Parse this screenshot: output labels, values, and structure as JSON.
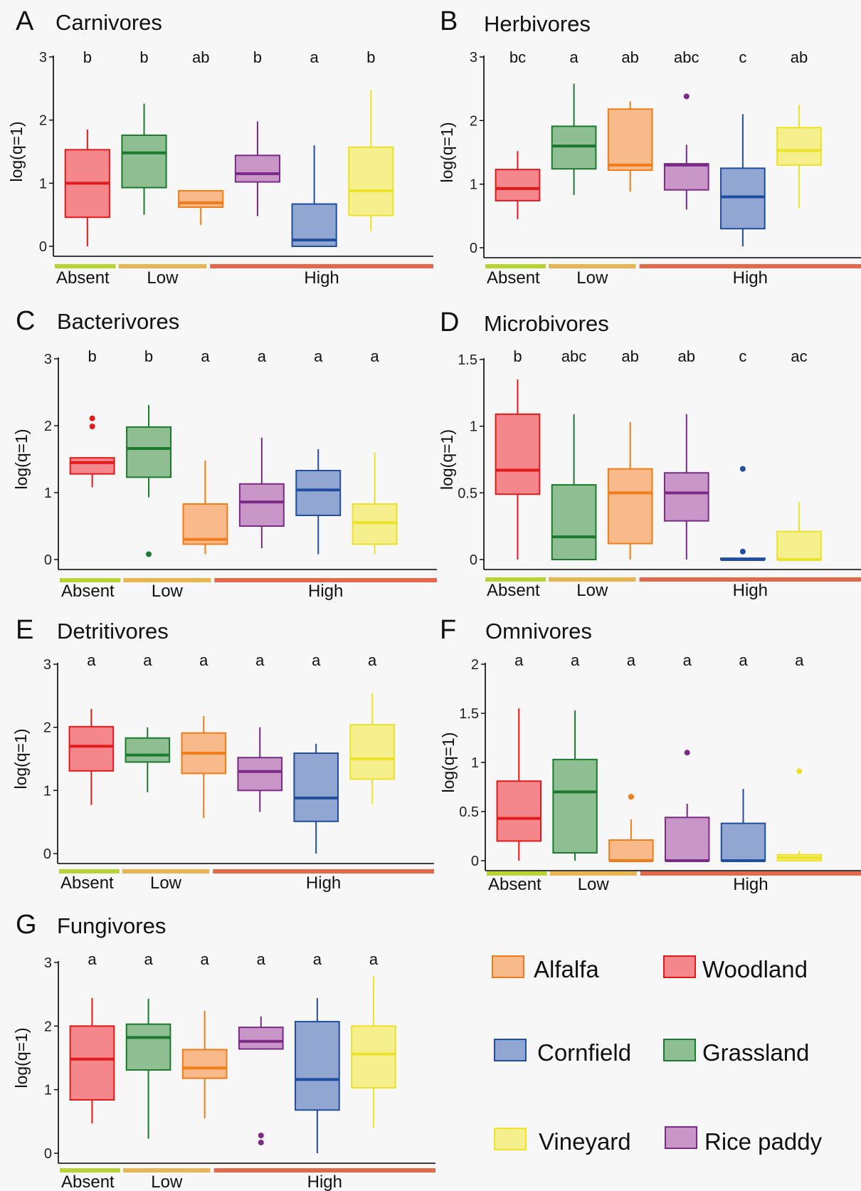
{
  "habitats": [
    {
      "name": "Woodland",
      "stroke": "#e31a1c",
      "fill": "#f4878b"
    },
    {
      "name": "Grassland",
      "stroke": "#1b7a2e",
      "fill": "#8fbe93"
    },
    {
      "name": "Alfalfa",
      "stroke": "#f07d18",
      "fill": "#f8b98b"
    },
    {
      "name": "Rice paddy",
      "stroke": "#7b2a87",
      "fill": "#c897c8"
    },
    {
      "name": "Cornfield",
      "stroke": "#1f4ea0",
      "fill": "#92a6d2"
    },
    {
      "name": "Vineyard",
      "stroke": "#ece22a",
      "fill": "#f5ef8e"
    }
  ],
  "groups": [
    {
      "label": "Absent",
      "color": "#b8d432"
    },
    {
      "label": "Low",
      "color": "#e8b650"
    },
    {
      "label": "High",
      "color": "#e2694b"
    }
  ],
  "legend": [
    {
      "label": "Alfalfa",
      "habitat": 2
    },
    {
      "label": "Woodland",
      "habitat": 0
    },
    {
      "label": "Cornfield",
      "habitat": 4
    },
    {
      "label": "Grassland",
      "habitat": 1
    },
    {
      "label": "Vineyard",
      "habitat": 5
    },
    {
      "label": "Rice paddy",
      "habitat": 3
    }
  ],
  "chart_data": [
    {
      "type": "box",
      "letter": "A",
      "title": "Carnivores",
      "ylabel": "log(q=1)",
      "ylim": [
        0,
        3
      ],
      "yticks": [
        "0",
        "1",
        "2",
        "3"
      ],
      "ytick_values": [
        0,
        1,
        2,
        3
      ],
      "sig": [
        "b",
        "b",
        "ab",
        "b",
        "a",
        "b"
      ],
      "boxes": [
        {
          "min": 0.0,
          "q1": 0.46,
          "median": 1.0,
          "q3": 1.53,
          "max": 1.85,
          "outliers": []
        },
        {
          "min": 0.5,
          "q1": 0.93,
          "median": 1.48,
          "q3": 1.76,
          "max": 2.26,
          "outliers": []
        },
        {
          "min": 0.34,
          "q1": 0.62,
          "median": 0.69,
          "q3": 0.88,
          "max": 0.88,
          "outliers": []
        },
        {
          "min": 0.48,
          "q1": 1.02,
          "median": 1.15,
          "q3": 1.44,
          "max": 1.98,
          "outliers": []
        },
        {
          "min": 0.0,
          "q1": 0.0,
          "median": 0.1,
          "q3": 0.67,
          "max": 1.6,
          "outliers": []
        },
        {
          "min": 0.24,
          "q1": 0.49,
          "median": 0.88,
          "q3": 1.57,
          "max": 2.48,
          "outliers": []
        }
      ]
    },
    {
      "type": "box",
      "letter": "B",
      "title": "Herbivores",
      "ylabel": "log(q=1)",
      "ylim": [
        0,
        3
      ],
      "yticks": [
        "0",
        "1",
        "2",
        "3"
      ],
      "ytick_values": [
        0,
        1,
        2,
        3
      ],
      "sig": [
        "bc",
        "a",
        "ab",
        "abc",
        "c",
        "ab"
      ],
      "boxes": [
        {
          "min": 0.45,
          "q1": 0.74,
          "median": 0.93,
          "q3": 1.23,
          "max": 1.52,
          "outliers": []
        },
        {
          "min": 0.83,
          "q1": 1.24,
          "median": 1.6,
          "q3": 1.91,
          "max": 2.58,
          "outliers": []
        },
        {
          "min": 0.88,
          "q1": 1.22,
          "median": 1.3,
          "q3": 2.18,
          "max": 2.3,
          "outliers": []
        },
        {
          "min": 0.6,
          "q1": 0.91,
          "median": 1.3,
          "q3": 1.32,
          "max": 1.62,
          "outliers": [
            2.38
          ]
        },
        {
          "min": 0.02,
          "q1": 0.3,
          "median": 0.8,
          "q3": 1.25,
          "max": 2.1,
          "outliers": []
        },
        {
          "min": 0.62,
          "q1": 1.3,
          "median": 1.53,
          "q3": 1.89,
          "max": 2.25,
          "outliers": []
        }
      ]
    },
    {
      "type": "box",
      "letter": "C",
      "title": "Bacterivores",
      "ylabel": "log(q=1)",
      "ylim": [
        0,
        3
      ],
      "yticks": [
        "0",
        "1",
        "2",
        "3"
      ],
      "ytick_values": [
        0,
        1,
        2,
        3
      ],
      "sig": [
        "b",
        "b",
        "a",
        "a",
        "a",
        "a"
      ],
      "boxes": [
        {
          "min": 1.08,
          "q1": 1.28,
          "median": 1.45,
          "q3": 1.52,
          "max": 1.52,
          "outliers": [
            1.99,
            2.11
          ]
        },
        {
          "min": 0.93,
          "q1": 1.23,
          "median": 1.66,
          "q3": 1.98,
          "max": 2.31,
          "outliers": [
            0.08
          ]
        },
        {
          "min": 0.08,
          "q1": 0.23,
          "median": 0.3,
          "q3": 0.83,
          "max": 1.48,
          "outliers": []
        },
        {
          "min": 0.17,
          "q1": 0.5,
          "median": 0.86,
          "q3": 1.13,
          "max": 1.82,
          "outliers": []
        },
        {
          "min": 0.08,
          "q1": 0.66,
          "median": 1.04,
          "q3": 1.33,
          "max": 1.65,
          "outliers": []
        },
        {
          "min": 0.08,
          "q1": 0.23,
          "median": 0.55,
          "q3": 0.83,
          "max": 1.6,
          "outliers": []
        }
      ]
    },
    {
      "type": "box",
      "letter": "D",
      "title": "Microbivores",
      "ylabel": "log(q=1)",
      "ylim": [
        0,
        1.5
      ],
      "yticks": [
        "0",
        "0.5",
        "1",
        "1.5"
      ],
      "ytick_values": [
        0,
        0.5,
        1,
        1.5
      ],
      "sig": [
        "b",
        "abc",
        "ab",
        "ab",
        "c",
        "ac"
      ],
      "boxes": [
        {
          "min": 0.0,
          "q1": 0.49,
          "median": 0.67,
          "q3": 1.09,
          "max": 1.35,
          "outliers": []
        },
        {
          "min": 0.0,
          "q1": 0.0,
          "median": 0.17,
          "q3": 0.56,
          "max": 1.09,
          "outliers": []
        },
        {
          "min": 0.0,
          "q1": 0.12,
          "median": 0.5,
          "q3": 0.68,
          "max": 1.03,
          "outliers": []
        },
        {
          "min": 0.0,
          "q1": 0.29,
          "median": 0.5,
          "q3": 0.65,
          "max": 1.09,
          "outliers": []
        },
        {
          "min": 0.0,
          "q1": 0.0,
          "median": 0.0,
          "q3": 0.01,
          "max": 0.01,
          "outliers": [
            0.06,
            0.68
          ]
        },
        {
          "min": 0.0,
          "q1": 0.0,
          "median": 0.0,
          "q3": 0.21,
          "max": 0.43,
          "outliers": []
        }
      ]
    },
    {
      "type": "box",
      "letter": "E",
      "title": "Detritivores",
      "ylabel": "log(q=1)",
      "ylim": [
        0,
        3
      ],
      "yticks": [
        "0",
        "1",
        "2",
        "3"
      ],
      "ytick_values": [
        0,
        1,
        2,
        3
      ],
      "sig": [
        "a",
        "a",
        "a",
        "a",
        "a",
        "a"
      ],
      "boxes": [
        {
          "min": 0.77,
          "q1": 1.31,
          "median": 1.7,
          "q3": 2.01,
          "max": 2.29,
          "outliers": []
        },
        {
          "min": 0.97,
          "q1": 1.45,
          "median": 1.56,
          "q3": 1.83,
          "max": 2.0,
          "outliers": []
        },
        {
          "min": 0.56,
          "q1": 1.27,
          "median": 1.59,
          "q3": 1.91,
          "max": 2.18,
          "outliers": []
        },
        {
          "min": 0.66,
          "q1": 1.0,
          "median": 1.3,
          "q3": 1.52,
          "max": 2.0,
          "outliers": []
        },
        {
          "min": 0.0,
          "q1": 0.51,
          "median": 0.88,
          "q3": 1.59,
          "max": 1.74,
          "outliers": []
        },
        {
          "min": 0.78,
          "q1": 1.18,
          "median": 1.5,
          "q3": 2.04,
          "max": 2.54,
          "outliers": []
        }
      ]
    },
    {
      "type": "box",
      "letter": "F",
      "title": "Omnivores",
      "ylabel": "log(q=1)",
      "ylim": [
        0,
        2
      ],
      "yticks": [
        "0",
        "0.5",
        "1",
        "1.5",
        "2"
      ],
      "ytick_values": [
        0,
        0.5,
        1,
        1.5,
        2
      ],
      "sig": [
        "a",
        "a",
        "a",
        "a",
        "a",
        "a"
      ],
      "boxes": [
        {
          "min": 0.0,
          "q1": 0.2,
          "median": 0.43,
          "q3": 0.81,
          "max": 1.55,
          "outliers": []
        },
        {
          "min": 0.0,
          "q1": 0.08,
          "median": 0.7,
          "q3": 1.03,
          "max": 1.53,
          "outliers": []
        },
        {
          "min": 0.0,
          "q1": 0.0,
          "median": 0.0,
          "q3": 0.21,
          "max": 0.42,
          "outliers": [
            0.65
          ]
        },
        {
          "min": 0.0,
          "q1": 0.0,
          "median": 0.0,
          "q3": 0.44,
          "max": 0.58,
          "outliers": [
            1.1
          ]
        },
        {
          "min": 0.0,
          "q1": 0.0,
          "median": 0.0,
          "q3": 0.38,
          "max": 0.73,
          "outliers": []
        },
        {
          "min": 0.0,
          "q1": 0.0,
          "median": 0.03,
          "q3": 0.06,
          "max": 0.1,
          "outliers": [
            0.91
          ]
        }
      ]
    },
    {
      "type": "box",
      "letter": "G",
      "title": "Fungivores",
      "ylabel": "log(q=1)",
      "ylim": [
        0,
        3
      ],
      "yticks": [
        "0",
        "1",
        "2",
        "3"
      ],
      "ytick_values": [
        0,
        1,
        2,
        3
      ],
      "sig": [
        "a",
        "a",
        "a",
        "a",
        "a",
        "a"
      ],
      "boxes": [
        {
          "min": 0.47,
          "q1": 0.84,
          "median": 1.48,
          "q3": 2.0,
          "max": 2.44,
          "outliers": []
        },
        {
          "min": 0.23,
          "q1": 1.31,
          "median": 1.82,
          "q3": 2.03,
          "max": 2.43,
          "outliers": []
        },
        {
          "min": 0.55,
          "q1": 1.18,
          "median": 1.34,
          "q3": 1.63,
          "max": 2.24,
          "outliers": []
        },
        {
          "min": 1.64,
          "q1": 1.64,
          "median": 1.76,
          "q3": 1.98,
          "max": 2.15,
          "outliers": [
            0.17,
            0.28
          ]
        },
        {
          "min": 0.0,
          "q1": 0.68,
          "median": 1.16,
          "q3": 2.07,
          "max": 2.44,
          "outliers": []
        },
        {
          "min": 0.4,
          "q1": 1.03,
          "median": 1.56,
          "q3": 2.0,
          "max": 2.78,
          "outliers": []
        }
      ]
    }
  ]
}
